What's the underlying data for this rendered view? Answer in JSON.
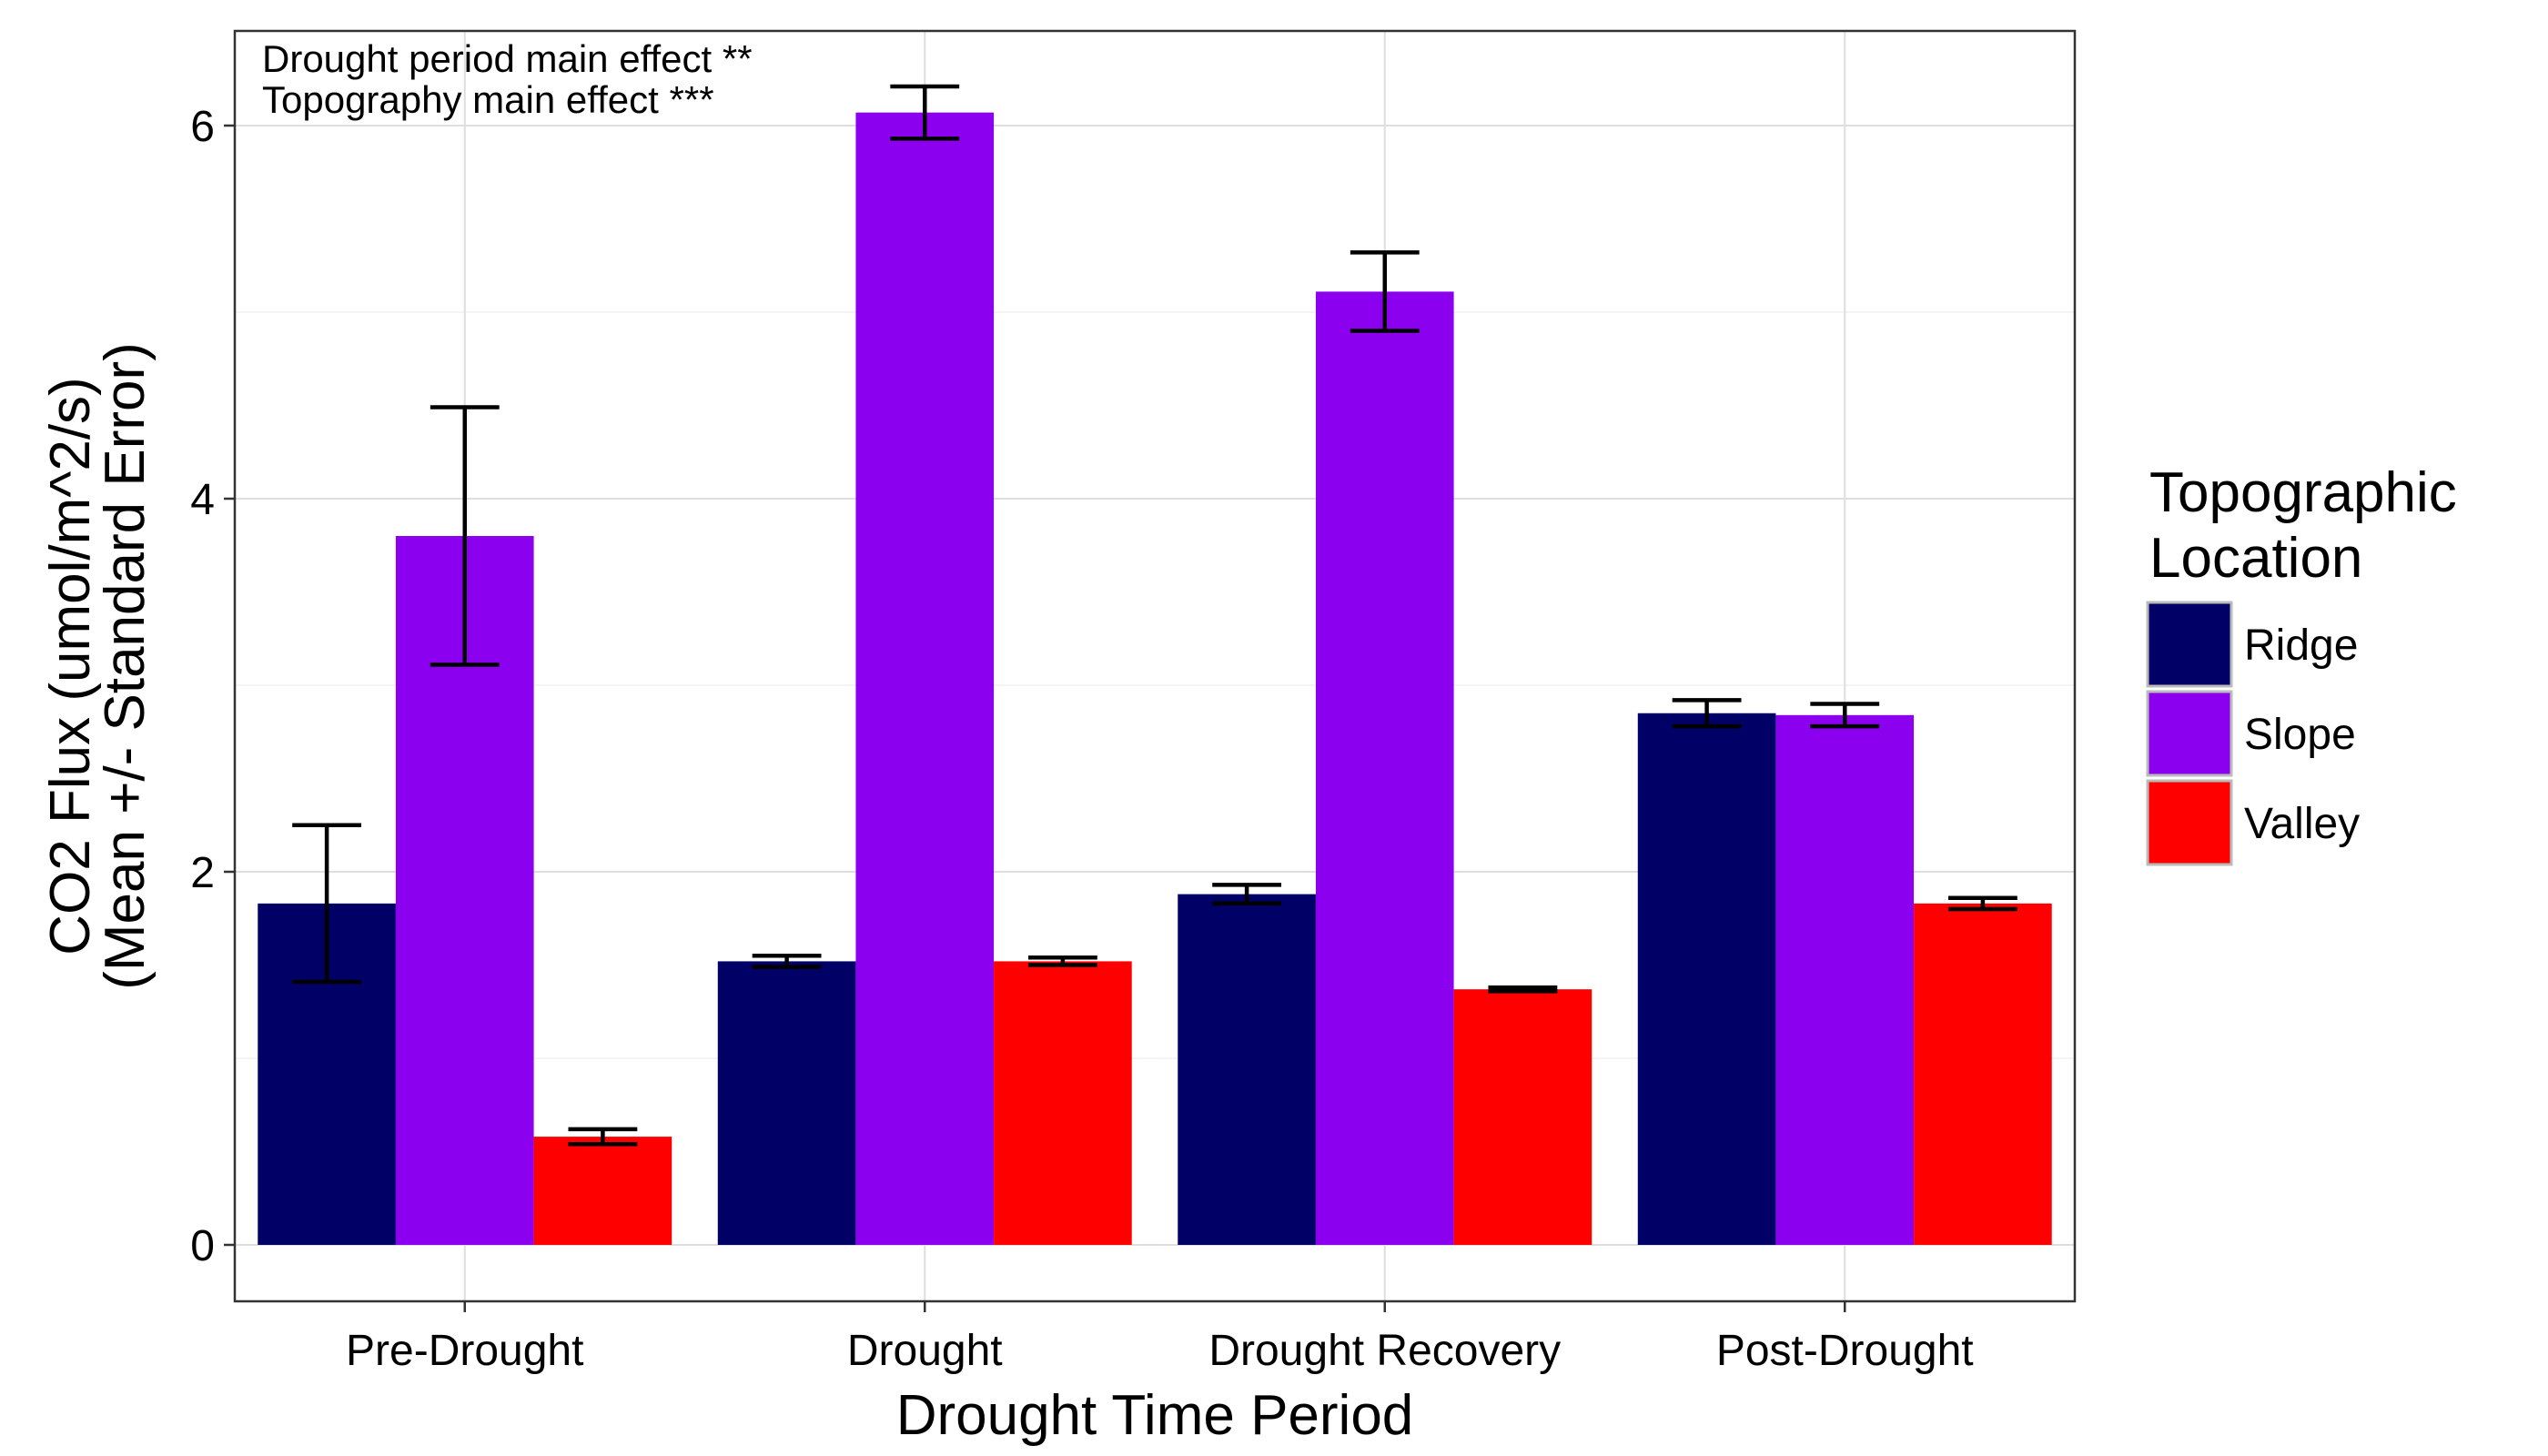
{
  "chart_data": {
    "type": "bar",
    "xlabel": "Drought Time Period",
    "ylabel_line1": "CO2 Flux (umol/m^2/s)",
    "ylabel_line2": "(Mean +/- Standard Error)",
    "categories": [
      "Pre-Drought",
      "Drought",
      "Drought Recovery",
      "Post-Drought"
    ],
    "series": [
      {
        "name": "Ridge",
        "color": "#000066",
        "values": [
          1.83,
          1.52,
          1.88,
          2.85
        ],
        "se": [
          0.42,
          0.03,
          0.05,
          0.07
        ]
      },
      {
        "name": "Slope",
        "color": "#8B00EE",
        "values": [
          3.8,
          6.07,
          5.11,
          2.84
        ],
        "se": [
          0.69,
          0.14,
          0.21,
          0.06
        ]
      },
      {
        "name": "Valley",
        "color": "#FF0000",
        "values": [
          0.58,
          1.52,
          1.37,
          1.83
        ],
        "se": [
          0.04,
          0.02,
          0.01,
          0.03
        ]
      }
    ],
    "ylim": [
      -0.3,
      6.5
    ],
    "yticks": [
      0,
      2,
      4,
      6
    ],
    "grid": true,
    "legend": {
      "title_line1": "Topographic",
      "title_line2": "Location",
      "position": "right"
    },
    "annotations": [
      "Drought period main effect  **",
      "Topography main effect  ***"
    ]
  }
}
